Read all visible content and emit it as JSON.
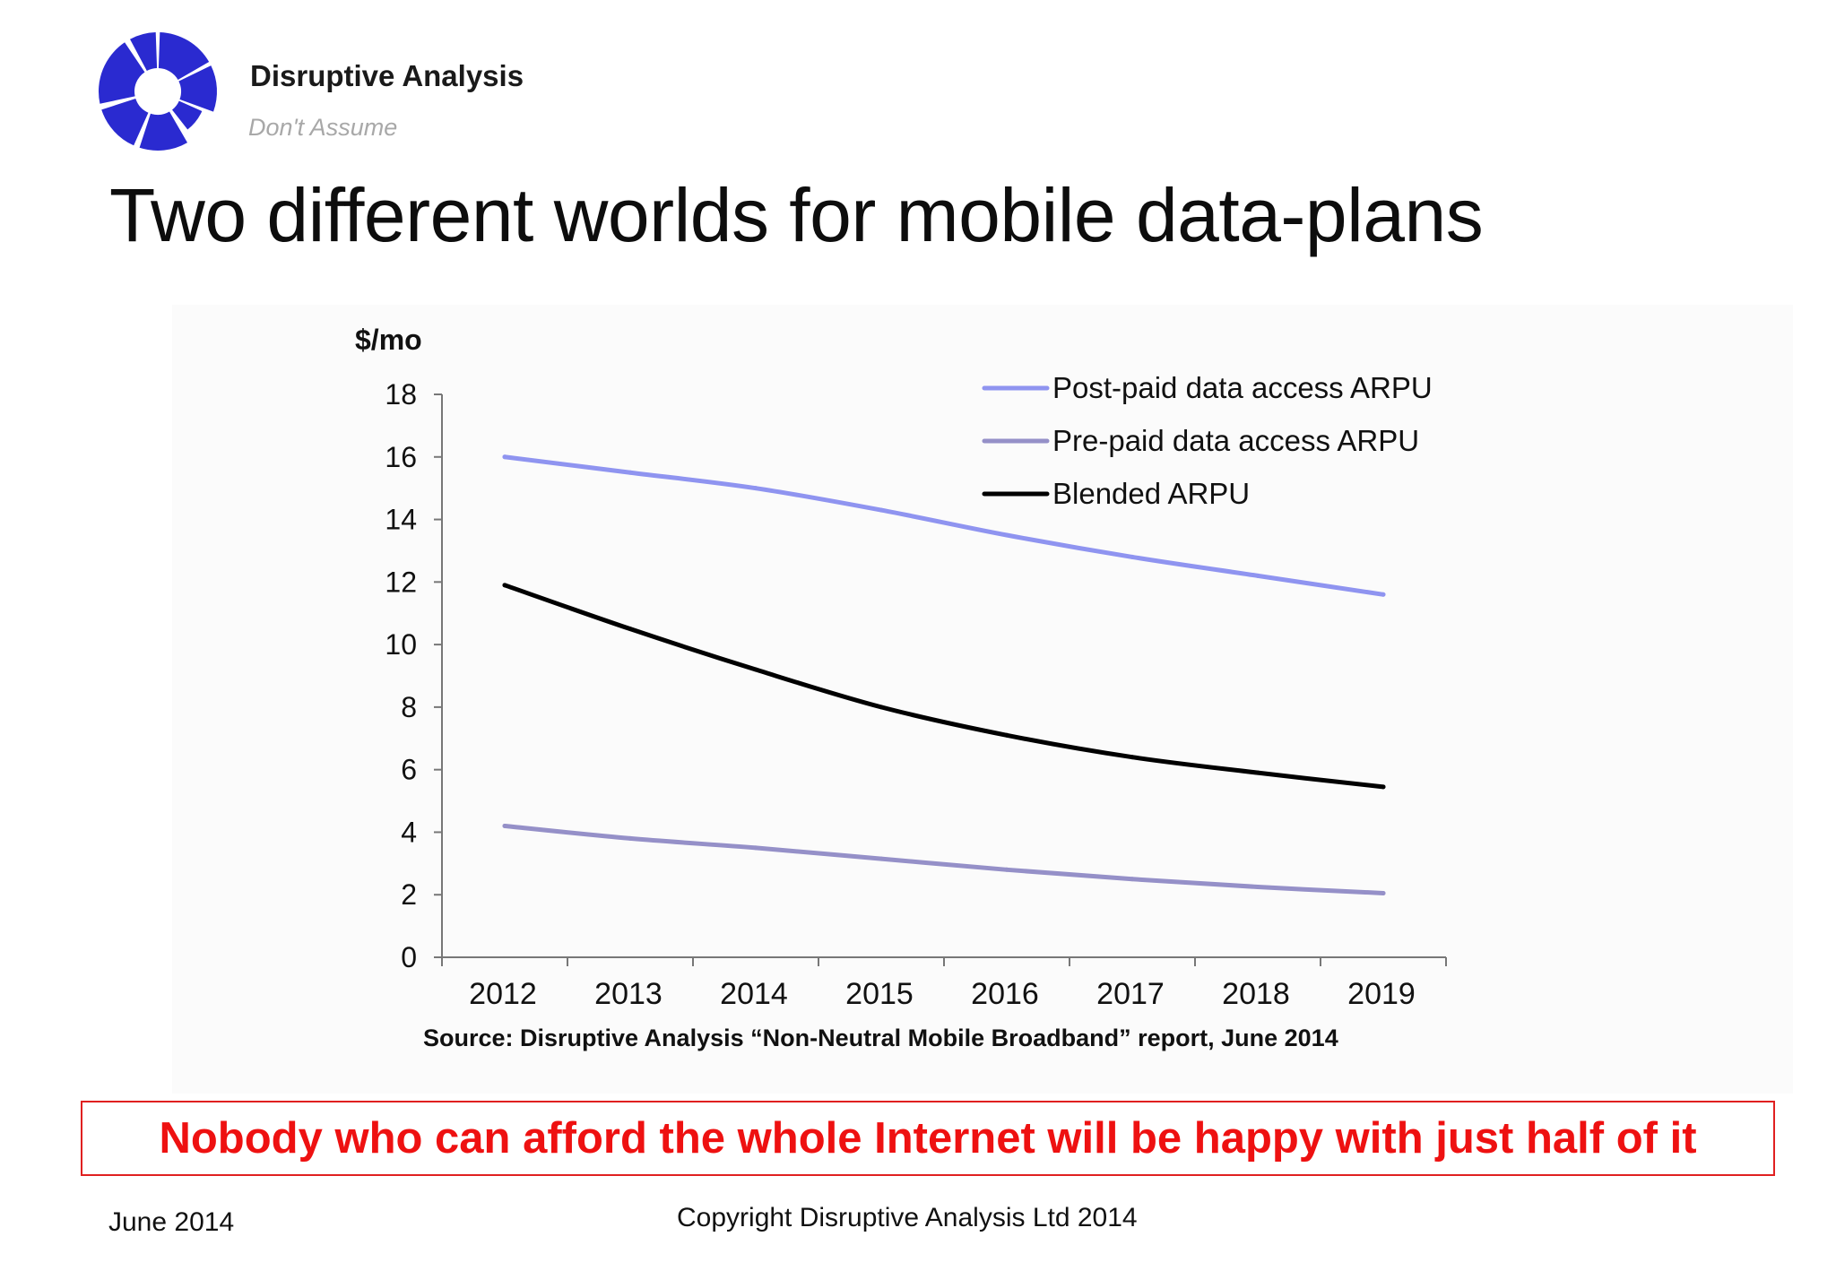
{
  "brand": {
    "name": "Disruptive Analysis",
    "tagline": "Don't Assume",
    "logo_icon": "segmented-ring-logo",
    "logo_color": "#2a2ad0"
  },
  "slide": {
    "title": "Two different worlds for mobile data-plans",
    "source": "Source: Disruptive Analysis “Non-Neutral Mobile Broadband” report, June 2014",
    "callout": "Nobody who can afford the whole Internet will be happy with just half of it",
    "callout_color": "#ee1111"
  },
  "footer": {
    "date": "June 2014",
    "copyright": "Copyright Disruptive Analysis Ltd 2014"
  },
  "chart_data": {
    "type": "line",
    "title": "",
    "ylabel": "$/mo",
    "xlabel": "",
    "x": [
      "2012",
      "2013",
      "2014",
      "2015",
      "2016",
      "2017",
      "2018",
      "2019"
    ],
    "ylim": [
      0,
      18
    ],
    "yticks": [
      0,
      2,
      4,
      6,
      8,
      10,
      12,
      14,
      16,
      18
    ],
    "grid": false,
    "legend_position": "top-right",
    "series": [
      {
        "name": "Post-paid data access ARPU",
        "color": "#8f94f0",
        "values": [
          16.0,
          15.5,
          15.0,
          14.3,
          13.5,
          12.8,
          12.2,
          11.6
        ]
      },
      {
        "name": "Pre-paid data access ARPU",
        "color": "#9590c8",
        "values": [
          4.2,
          3.8,
          3.5,
          3.15,
          2.8,
          2.5,
          2.25,
          2.05
        ]
      },
      {
        "name": "Blended ARPU",
        "color": "#000000",
        "values": [
          11.9,
          10.5,
          9.2,
          8.0,
          7.1,
          6.4,
          5.9,
          5.45
        ]
      }
    ]
  }
}
